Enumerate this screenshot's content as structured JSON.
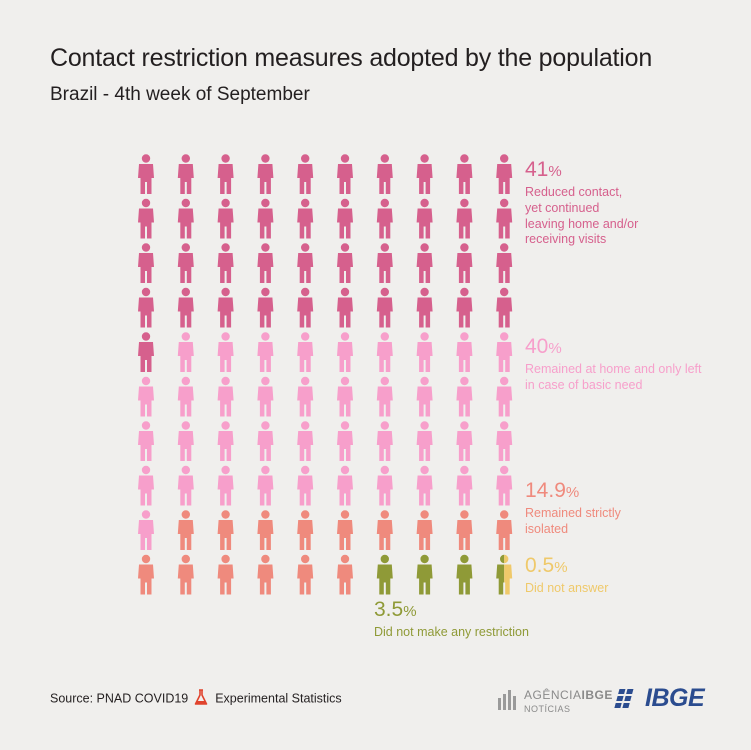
{
  "title": "Contact restriction measures adopted by the population",
  "subtitle": "Brazil - 4th week of September",
  "chart_data": {
    "type": "pictogram",
    "units_total": 100,
    "grid": {
      "columns": 10,
      "rows": 10,
      "fill_order": "row-major"
    },
    "categories": [
      {
        "value": 41,
        "value_label": "41",
        "label": "Reduced contact,\nyet continued\nleaving home and/or\nreceiving visits",
        "color": "#d6608d",
        "units": 41
      },
      {
        "value": 40,
        "value_label": "40",
        "label": "Remained at home and only left\nin case of basic need",
        "color": "#f79fcb",
        "units": 40
      },
      {
        "value": 14.9,
        "value_label": "14.9",
        "label": "Remained strictly\nisolated",
        "color": "#ef8a7d",
        "units": 15
      },
      {
        "value": 3.5,
        "value_label": "3.5",
        "label": "Did not make any restriction",
        "color": "#8f9a37",
        "units": 3.5
      },
      {
        "value": 0.5,
        "value_label": "0.5",
        "label": "Did not answer",
        "color": "#efc96a",
        "units": 0.5
      }
    ],
    "percent_sign": "%"
  },
  "footer": {
    "source_label": "Source: PNAD COVID19",
    "experimental_label": "Experimental Statistics"
  },
  "logos": {
    "agencia_name_1": "AGÊNCIA",
    "agencia_name_2": "IBGE",
    "agencia_sub": "NOTÍCIAS",
    "ibge_word": "IBGE"
  }
}
